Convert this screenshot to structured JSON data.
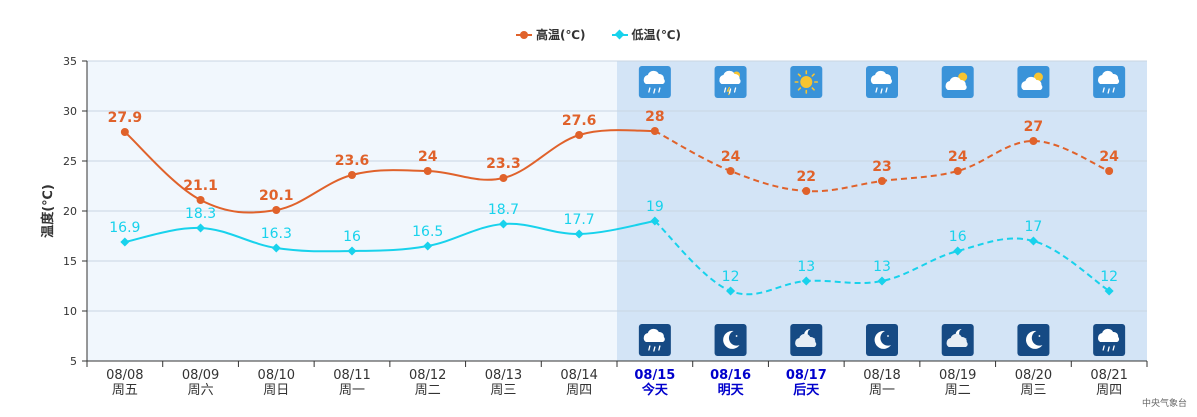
{
  "chart_data": {
    "type": "line",
    "title": "",
    "xlabel": "",
    "ylabel": "温度(℃)",
    "ylim": [
      5,
      35
    ],
    "yticks": [
      5,
      10,
      15,
      20,
      25,
      30,
      35
    ],
    "grid": true,
    "legend_position": "top-center",
    "categories": [
      "08/08",
      "08/09",
      "08/10",
      "08/11",
      "08/12",
      "08/13",
      "08/14",
      "08/15",
      "08/16",
      "08/17",
      "08/18",
      "08/19",
      "08/20",
      "08/21"
    ],
    "category_sublabels": [
      "周五",
      "周六",
      "周日",
      "周一",
      "周二",
      "周三",
      "周四",
      "今天",
      "明天",
      "后天",
      "周一",
      "周二",
      "周三",
      "周四"
    ],
    "highlight_categories": [
      "08/15",
      "08/16",
      "08/17"
    ],
    "forecast_start_index": 7,
    "series": [
      {
        "name": "高温(℃)",
        "color": "#E0622B",
        "marker": "circle",
        "values": [
          27.9,
          21.1,
          20.1,
          23.6,
          24,
          23.3,
          27.6,
          28,
          24,
          22,
          23,
          24,
          27,
          24
        ],
        "labels": [
          "27.9",
          "21.1",
          "20.1",
          "23.6",
          "24",
          "23.3",
          "27.6",
          "28",
          "24",
          "22",
          "23",
          "24",
          "27",
          "24"
        ]
      },
      {
        "name": "低温(℃)",
        "color": "#18D2EC",
        "marker": "diamond",
        "values": [
          16.9,
          18.3,
          16.3,
          16,
          16.5,
          18.7,
          17.7,
          19,
          12,
          13,
          13,
          16,
          17,
          12
        ],
        "labels": [
          "16.9",
          "18.3",
          "16.3",
          "16",
          "16.5",
          "18.7",
          "17.7",
          "19",
          "12",
          "13",
          "13",
          "16",
          "17",
          "12"
        ]
      }
    ],
    "day_weather_icons": [
      "rain-icon",
      "thunder-rain-icon",
      "sunny-icon",
      "rain-icon",
      "cloudy-sun-icon",
      "cloudy-sun-icon",
      "rain-icon"
    ],
    "night_weather_icons": [
      "rain-icon",
      "moon-icon",
      "cloudy-moon-icon",
      "moon-icon",
      "cloudy-moon-icon",
      "moon-icon",
      "rain-icon"
    ],
    "colors": {
      "past_bg": "#F1F7FD",
      "forecast_bg": "#D3E4F6",
      "highlight_label": "#0000CC",
      "grid": "#C9D6E3"
    }
  },
  "source": "中央气象台"
}
